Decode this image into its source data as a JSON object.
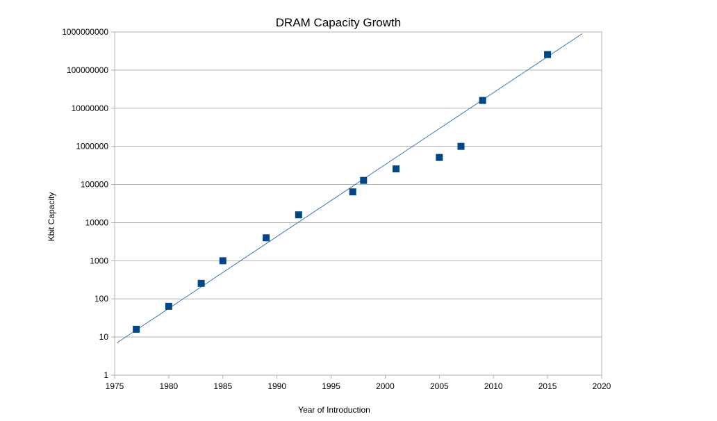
{
  "chart_data": {
    "type": "scatter",
    "title": "DRAM Capacity Growth",
    "xlabel": "Year of Introduction",
    "ylabel": "Kbit Capacity",
    "xlim": [
      1975,
      2020
    ],
    "ylim": [
      1,
      1000000000
    ],
    "yscale": "log",
    "x_ticks": [
      "1975",
      "1980",
      "1985",
      "1990",
      "1995",
      "2000",
      "2005",
      "2010",
      "2015",
      "2020"
    ],
    "y_ticks": [
      "1",
      "10",
      "100",
      "1000",
      "10000",
      "100000",
      "1000000",
      "10000000",
      "100000000",
      "1000000000"
    ],
    "grid": true,
    "marker": "square",
    "series": [
      {
        "x": [
          1977,
          1980,
          1983,
          1985,
          1989,
          1992,
          1997,
          1998,
          2001,
          2005,
          2007,
          2009,
          2015
        ],
        "y": [
          16,
          64,
          256,
          1000,
          4000,
          16000,
          64000,
          128000,
          256000,
          512000,
          1000000,
          16000000,
          256000000
        ],
        "color": "#004586"
      }
    ],
    "trendline": {
      "type": "exponential",
      "points": [
        [
          1975.2,
          7
        ],
        [
          2018.2,
          900000000
        ]
      ],
      "color": "#3a78b5"
    }
  }
}
